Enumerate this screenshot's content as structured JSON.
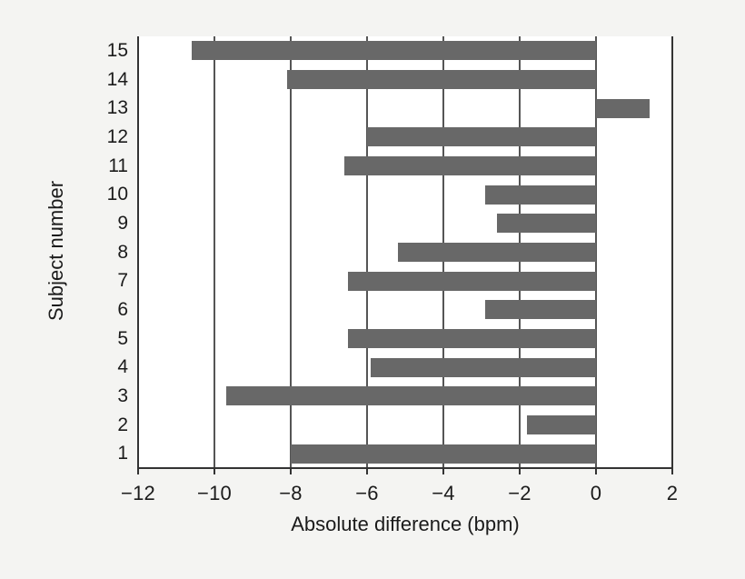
{
  "figure": {
    "canvas_bg": "#f4f4f2",
    "plot_bg": "#ffffff",
    "bar_color": "#686868",
    "grid_color": "#555555",
    "axis_color": "#333333",
    "text_color": "#1b1b1b"
  },
  "chart_data": {
    "type": "bar",
    "orientation": "horizontal",
    "xlabel": "Absolute difference (bpm)",
    "ylabel": "Subject number",
    "categories": [
      1,
      2,
      3,
      4,
      5,
      6,
      7,
      8,
      9,
      10,
      11,
      12,
      13,
      14,
      15
    ],
    "values": [
      -8.0,
      -1.8,
      -9.7,
      -5.9,
      -6.5,
      -2.9,
      -6.5,
      -5.2,
      -2.6,
      -2.9,
      -6.6,
      -6.0,
      1.4,
      -8.1,
      -10.6
    ],
    "xlim": [
      -12,
      2
    ],
    "xticks": [
      -12,
      -10,
      -8,
      -6,
      -4,
      -2,
      0,
      2
    ],
    "xtick_labels": [
      "−12",
      "−10",
      "−8",
      "−6",
      "−4",
      "−2",
      "0",
      "2"
    ],
    "grid": true,
    "legend": null,
    "baseline": 0
  }
}
